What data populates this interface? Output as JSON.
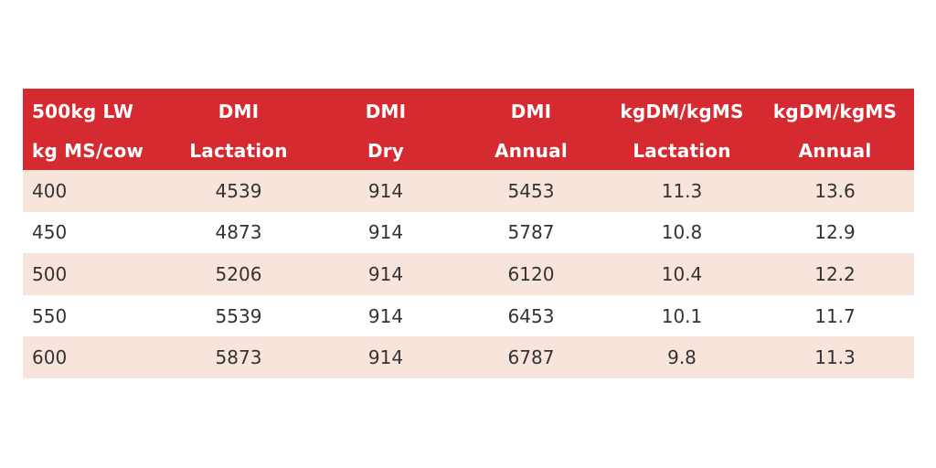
{
  "table": {
    "header_row_1": [
      "500kg LW",
      "DMI",
      "DMI",
      "DMI",
      "kgDM/kgMS",
      "kgDM/kgMS"
    ],
    "header_row_2": [
      "kg MS/cow",
      "Lactation",
      "Dry",
      "Annual",
      "Lactation",
      "Annual"
    ],
    "rows": [
      [
        "400",
        "4539",
        "914",
        "5453",
        "11.3",
        "13.6"
      ],
      [
        "450",
        "4873",
        "914",
        "5787",
        "10.8",
        "12.9"
      ],
      [
        "500",
        "5206",
        "914",
        "6120",
        "10.4",
        "12.2"
      ],
      [
        "550",
        "5539",
        "914",
        "6453",
        "10.1",
        "11.7"
      ],
      [
        "600",
        "5873",
        "914",
        "6787",
        "9.8",
        "11.3"
      ]
    ]
  },
  "colors": {
    "header_bg": "#d52b30",
    "header_text": "#ffffff",
    "shaded_row": "#f9e4dc",
    "plain_row": "#ffffff"
  }
}
